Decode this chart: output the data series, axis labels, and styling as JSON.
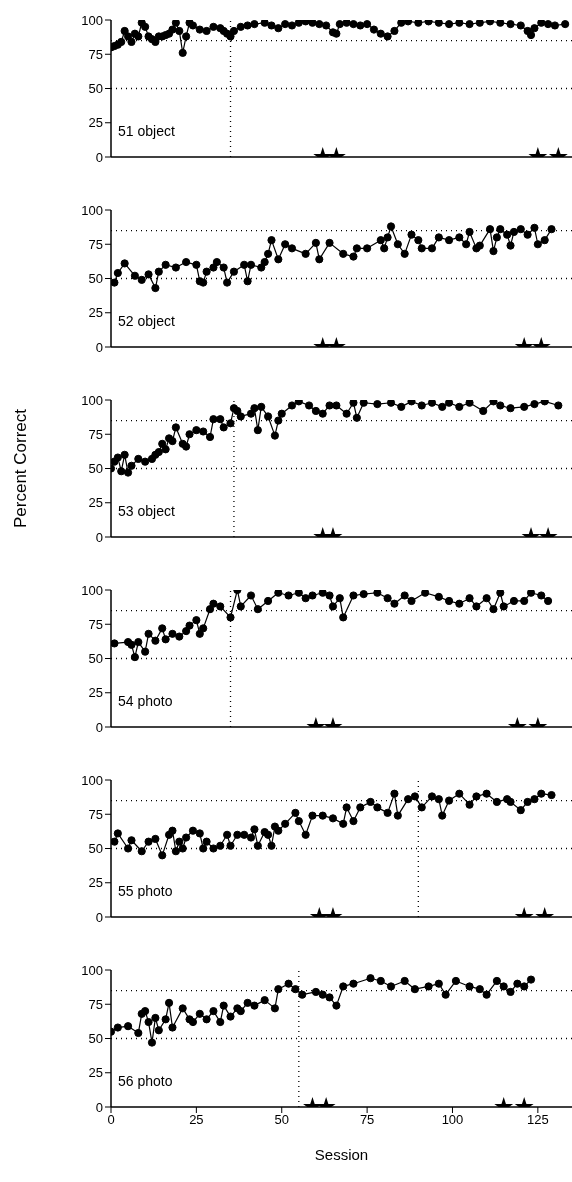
{
  "chart_data": [
    {
      "type": "line",
      "annotations": [
        "51 object"
      ],
      "xlim": [
        0,
        135
      ],
      "xticks": [
        0,
        25,
        50,
        75,
        100,
        125
      ],
      "ylim": [
        0,
        100
      ],
      "yticks": [
        0,
        25,
        50,
        75,
        100
      ],
      "tick_labels": "y",
      "marker": "circle",
      "series": [
        {
          "color": "#000000",
          "x": [
            0,
            1,
            2,
            3,
            4,
            5,
            6,
            7,
            8,
            9,
            10,
            11,
            12,
            13,
            14,
            15,
            16,
            17,
            18,
            19,
            20,
            21,
            22,
            23,
            24,
            26,
            28,
            30,
            32,
            33,
            34,
            35,
            36,
            38,
            40,
            42,
            45,
            47,
            49,
            51,
            53,
            55,
            57,
            59,
            61,
            63,
            65,
            66,
            67,
            69,
            71,
            73,
            75,
            77,
            79,
            81,
            83,
            85,
            87,
            90,
            93,
            96,
            99,
            102,
            105,
            108,
            111,
            114,
            117,
            120,
            122,
            123,
            124,
            126,
            128,
            130,
            133
          ],
          "values": [
            80,
            81,
            82,
            84,
            92,
            88,
            84,
            90,
            88,
            98,
            95,
            88,
            86,
            84,
            88,
            88,
            89,
            90,
            93,
            98,
            92,
            76,
            88,
            98,
            96,
            93,
            92,
            95,
            94,
            92,
            90,
            88,
            92,
            95,
            96,
            97,
            98,
            96,
            94,
            97,
            96,
            98,
            99,
            98,
            97,
            96,
            91,
            90,
            97,
            98,
            97,
            96,
            97,
            93,
            90,
            88,
            92,
            98,
            99,
            98,
            99,
            98,
            97,
            98,
            97,
            98,
            99,
            98,
            97,
            96,
            92,
            89,
            94,
            98,
            97,
            96,
            97
          ]
        },
        {
          "type": "scatter",
          "marker": "star",
          "color": "#000000",
          "x": [
            62,
            66,
            125,
            131
          ],
          "values": [
            0,
            0,
            0,
            0
          ]
        }
      ],
      "ref_lines": [
        {
          "axis": "y",
          "value": 85,
          "color": "#000000",
          "line_style": "dotted"
        },
        {
          "axis": "y",
          "value": 50,
          "color": "#000000",
          "line_style": "dotted"
        },
        {
          "axis": "x",
          "value": 35,
          "color": "#000000",
          "line_style": "dotted"
        }
      ]
    },
    {
      "type": "line",
      "annotations": [
        "52 object"
      ],
      "xlim": [
        0,
        135
      ],
      "xticks": [
        0,
        25,
        50,
        75,
        100,
        125
      ],
      "ylim": [
        0,
        100
      ],
      "yticks": [
        0,
        25,
        50,
        75,
        100
      ],
      "tick_labels": "y",
      "marker": "circle",
      "series": [
        {
          "color": "#000000",
          "x": [
            1,
            2,
            4,
            7,
            9,
            11,
            13,
            14,
            16,
            19,
            22,
            25,
            26,
            27,
            28,
            30,
            31,
            33,
            34,
            36,
            39,
            40,
            41,
            44,
            45,
            46,
            47,
            49,
            51,
            53,
            57,
            60,
            61,
            64,
            68,
            71,
            72,
            75,
            79,
            80,
            81,
            82,
            84,
            86,
            88,
            90,
            91,
            94,
            96,
            99,
            102,
            104,
            105,
            107,
            108,
            111,
            112,
            113,
            114,
            116,
            117,
            118,
            120,
            122,
            124,
            125,
            127,
            129
          ],
          "values": [
            47,
            54,
            61,
            52,
            49,
            53,
            43,
            55,
            60,
            58,
            62,
            60,
            48,
            47,
            55,
            58,
            62,
            58,
            47,
            55,
            60,
            48,
            60,
            58,
            62,
            68,
            78,
            64,
            75,
            72,
            68,
            76,
            64,
            76,
            68,
            66,
            72,
            72,
            78,
            72,
            80,
            88,
            75,
            68,
            82,
            78,
            72,
            72,
            80,
            78,
            80,
            75,
            84,
            72,
            74,
            86,
            70,
            80,
            86,
            82,
            74,
            84,
            86,
            82,
            87,
            75,
            78,
            86
          ]
        },
        {
          "type": "scatter",
          "marker": "star",
          "color": "#000000",
          "x": [
            62,
            66,
            121,
            126
          ],
          "values": [
            0,
            0,
            0,
            0
          ]
        }
      ],
      "ref_lines": [
        {
          "axis": "y",
          "value": 85,
          "color": "#000000",
          "line_style": "dotted"
        },
        {
          "axis": "y",
          "value": 50,
          "color": "#000000",
          "line_style": "dotted"
        }
      ]
    },
    {
      "type": "line",
      "annotations": [
        "53 object"
      ],
      "ylabel": "Percent Correct",
      "xlim": [
        0,
        135
      ],
      "xticks": [
        0,
        25,
        50,
        75,
        100,
        125
      ],
      "ylim": [
        0,
        100
      ],
      "yticks": [
        0,
        25,
        50,
        75,
        100
      ],
      "tick_labels": "y",
      "marker": "circle",
      "series": [
        {
          "color": "#000000",
          "x": [
            0,
            1,
            2,
            3,
            4,
            5,
            6,
            8,
            10,
            12,
            13,
            14,
            15,
            16,
            17,
            18,
            19,
            21,
            22,
            23,
            25,
            27,
            29,
            30,
            32,
            33,
            35,
            36,
            37,
            38,
            41,
            42,
            43,
            44,
            46,
            48,
            49,
            50,
            53,
            55,
            58,
            60,
            62,
            64,
            66,
            69,
            71,
            72,
            74,
            78,
            82,
            85,
            88,
            91,
            94,
            97,
            99,
            102,
            105,
            109,
            112,
            114,
            117,
            121,
            124,
            127,
            131
          ],
          "values": [
            50,
            55,
            58,
            48,
            60,
            47,
            52,
            57,
            55,
            57,
            60,
            62,
            68,
            64,
            72,
            70,
            80,
            68,
            66,
            75,
            78,
            77,
            73,
            86,
            86,
            80,
            83,
            94,
            92,
            88,
            90,
            94,
            78,
            95,
            88,
            74,
            85,
            90,
            96,
            99,
            96,
            92,
            90,
            96,
            96,
            90,
            98,
            87,
            98,
            97,
            98,
            95,
            99,
            96,
            98,
            95,
            98,
            95,
            98,
            92,
            99,
            96,
            94,
            95,
            97,
            99,
            96
          ]
        },
        {
          "type": "scatter",
          "marker": "star",
          "color": "#000000",
          "x": [
            62,
            65,
            123,
            128
          ],
          "values": [
            0,
            0,
            0,
            0
          ]
        }
      ],
      "ref_lines": [
        {
          "axis": "y",
          "value": 85,
          "color": "#000000",
          "line_style": "dotted"
        },
        {
          "axis": "y",
          "value": 50,
          "color": "#000000",
          "line_style": "dotted"
        },
        {
          "axis": "x",
          "value": 36,
          "color": "#000000",
          "line_style": "dotted"
        }
      ]
    },
    {
      "type": "line",
      "annotations": [
        "54 photo"
      ],
      "xlim": [
        0,
        135
      ],
      "xticks": [
        0,
        25,
        50,
        75,
        100,
        125
      ],
      "ylim": [
        0,
        100
      ],
      "yticks": [
        0,
        25,
        50,
        75,
        100
      ],
      "tick_labels": "y",
      "marker": "circle",
      "series": [
        {
          "color": "#000000",
          "x": [
            1,
            5,
            6,
            7,
            8,
            10,
            11,
            13,
            15,
            16,
            18,
            20,
            22,
            23,
            25,
            26,
            27,
            29,
            30,
            32,
            35,
            37,
            38,
            41,
            43,
            46,
            49,
            52,
            55,
            57,
            59,
            62,
            64,
            65,
            67,
            68,
            71,
            74,
            78,
            81,
            83,
            86,
            88,
            92,
            96,
            99,
            102,
            105,
            107,
            110,
            112,
            114,
            115,
            118,
            121,
            123,
            126,
            128
          ],
          "values": [
            61,
            62,
            60,
            51,
            62,
            55,
            68,
            63,
            72,
            64,
            68,
            66,
            70,
            74,
            78,
            68,
            72,
            86,
            90,
            88,
            80,
            100,
            88,
            96,
            86,
            92,
            98,
            96,
            98,
            94,
            96,
            98,
            96,
            88,
            94,
            80,
            96,
            97,
            98,
            94,
            90,
            96,
            92,
            98,
            95,
            92,
            90,
            94,
            88,
            94,
            86,
            98,
            88,
            92,
            92,
            98,
            96,
            92
          ]
        },
        {
          "type": "scatter",
          "marker": "star",
          "color": "#000000",
          "x": [
            60,
            65,
            119,
            125
          ],
          "values": [
            0,
            0,
            0,
            0
          ]
        }
      ],
      "ref_lines": [
        {
          "axis": "y",
          "value": 85,
          "color": "#000000",
          "line_style": "dotted"
        },
        {
          "axis": "y",
          "value": 50,
          "color": "#000000",
          "line_style": "dotted"
        },
        {
          "axis": "x",
          "value": 35,
          "color": "#000000",
          "line_style": "dotted"
        }
      ]
    },
    {
      "type": "line",
      "annotations": [
        "55 photo"
      ],
      "xlim": [
        0,
        135
      ],
      "xticks": [
        0,
        25,
        50,
        75,
        100,
        125
      ],
      "ylim": [
        0,
        100
      ],
      "yticks": [
        0,
        25,
        50,
        75,
        100
      ],
      "tick_labels": "y",
      "marker": "circle",
      "series": [
        {
          "color": "#000000",
          "x": [
            1,
            2,
            5,
            6,
            9,
            11,
            13,
            15,
            17,
            18,
            19,
            20,
            21,
            22,
            24,
            26,
            27,
            28,
            30,
            32,
            34,
            35,
            37,
            39,
            41,
            42,
            43,
            45,
            46,
            47,
            48,
            49,
            51,
            54,
            55,
            57,
            59,
            62,
            65,
            68,
            69,
            71,
            73,
            76,
            78,
            81,
            83,
            84,
            87,
            89,
            91,
            94,
            96,
            97,
            99,
            102,
            105,
            107,
            110,
            113,
            116,
            117,
            120,
            122,
            124,
            126,
            129
          ],
          "values": [
            55,
            61,
            50,
            56,
            48,
            55,
            57,
            45,
            60,
            63,
            48,
            55,
            50,
            58,
            63,
            61,
            50,
            55,
            50,
            52,
            60,
            52,
            60,
            60,
            58,
            64,
            52,
            62,
            60,
            52,
            66,
            63,
            68,
            76,
            70,
            60,
            74,
            74,
            72,
            68,
            80,
            70,
            80,
            84,
            80,
            76,
            90,
            74,
            86,
            88,
            80,
            88,
            86,
            74,
            85,
            90,
            82,
            88,
            90,
            84,
            86,
            84,
            78,
            84,
            86,
            90,
            89
          ]
        },
        {
          "type": "scatter",
          "marker": "star",
          "color": "#000000",
          "x": [
            61,
            65,
            121,
            127
          ],
          "values": [
            0,
            0,
            0,
            0
          ]
        }
      ],
      "ref_lines": [
        {
          "axis": "y",
          "value": 85,
          "color": "#000000",
          "line_style": "dotted"
        },
        {
          "axis": "y",
          "value": 50,
          "color": "#000000",
          "line_style": "dotted"
        },
        {
          "axis": "x",
          "value": 90,
          "color": "#000000",
          "line_style": "dotted"
        }
      ]
    },
    {
      "type": "line",
      "annotations": [
        "56 photo"
      ],
      "xlabel": "Session",
      "xlim": [
        0,
        135
      ],
      "xticks": [
        0,
        25,
        50,
        75,
        100,
        125
      ],
      "ylim": [
        0,
        100
      ],
      "yticks": [
        0,
        25,
        50,
        75,
        100
      ],
      "marker": "circle",
      "series": [
        {
          "color": "#000000",
          "x": [
            0,
            2,
            5,
            8,
            9,
            10,
            11,
            12,
            13,
            14,
            16,
            17,
            18,
            21,
            23,
            24,
            26,
            28,
            30,
            32,
            33,
            35,
            37,
            38,
            40,
            42,
            45,
            48,
            49,
            52,
            54,
            56,
            60,
            62,
            64,
            66,
            68,
            71,
            76,
            79,
            82,
            86,
            89,
            93,
            96,
            98,
            101,
            105,
            108,
            110,
            113,
            115,
            117,
            119,
            121,
            123
          ],
          "values": [
            55,
            58,
            59,
            54,
            68,
            70,
            62,
            47,
            65,
            56,
            64,
            76,
            58,
            72,
            64,
            62,
            68,
            64,
            70,
            62,
            74,
            66,
            72,
            70,
            76,
            74,
            78,
            72,
            86,
            90,
            86,
            82,
            84,
            82,
            80,
            74,
            88,
            90,
            94,
            92,
            88,
            92,
            86,
            88,
            90,
            82,
            92,
            88,
            86,
            82,
            92,
            88,
            84,
            90,
            88,
            93
          ]
        },
        {
          "type": "scatter",
          "marker": "star",
          "color": "#000000",
          "x": [
            59,
            63,
            115,
            121
          ],
          "values": [
            0,
            0,
            0,
            0
          ]
        }
      ],
      "ref_lines": [
        {
          "axis": "y",
          "value": 85,
          "color": "#000000",
          "line_style": "dotted"
        },
        {
          "axis": "y",
          "value": 50,
          "color": "#000000",
          "line_style": "dotted"
        },
        {
          "axis": "x",
          "value": 55,
          "color": "#000000",
          "line_style": "dotted"
        }
      ]
    }
  ]
}
